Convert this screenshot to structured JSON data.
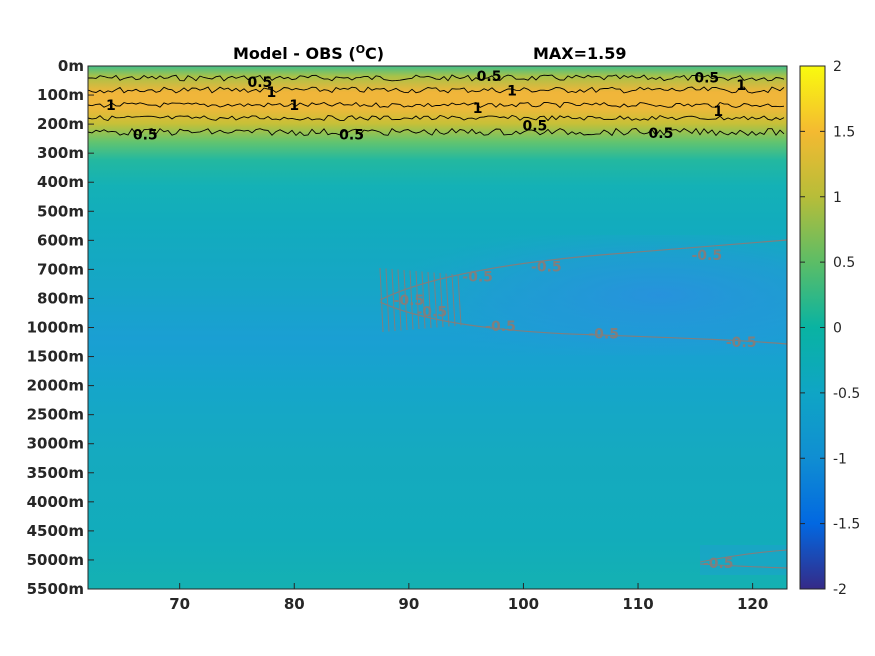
{
  "chart_data": {
    "type": "heatmap",
    "title": "Model - OBS (",
    "title_unit": "O",
    "title_unit_tail": "C)",
    "annotation": "MAX=1.59",
    "x_ticks": [
      "70",
      "80",
      "90",
      "100",
      "110",
      "120"
    ],
    "x_tick_values": [
      70,
      80,
      90,
      100,
      110,
      120
    ],
    "xlim": [
      62,
      123
    ],
    "y_ticks": [
      "0m",
      "100m",
      "200m",
      "300m",
      "400m",
      "500m",
      "600m",
      "700m",
      "800m",
      "1000m",
      "1500m",
      "2000m",
      "2500m",
      "3000m",
      "3500m",
      "4000m",
      "4500m",
      "5000m",
      "5500m"
    ],
    "colorbar": {
      "ticks": [
        "2",
        "1.5",
        "1",
        "0.5",
        "0",
        "-0.5",
        "-1",
        "-1.5",
        "-2"
      ],
      "range": [
        -2,
        2
      ],
      "colormap": "parula"
    },
    "contours": [
      {
        "level": "0.5",
        "color": "#000000",
        "labels": [
          {
            "text": "0.5",
            "x": 77,
            "y": 0.55
          },
          {
            "text": "0.5",
            "x": 97,
            "y": 0.35
          },
          {
            "text": "0.5",
            "x": 116,
            "y": 0.4
          },
          {
            "text": "0.5",
            "x": 67,
            "y": 2.35
          },
          {
            "text": "0.5",
            "x": 85,
            "y": 2.35
          },
          {
            "text": "0.5",
            "x": 101,
            "y": 2.05
          },
          {
            "text": "0.5",
            "x": 112,
            "y": 2.3
          }
        ]
      },
      {
        "level": "1",
        "color": "#000000",
        "labels": [
          {
            "text": "1",
            "x": 78,
            "y": 0.9
          },
          {
            "text": "1",
            "x": 99,
            "y": 0.85
          },
          {
            "text": "1",
            "x": 119,
            "y": 0.65
          },
          {
            "text": "1",
            "x": 64,
            "y": 1.35
          },
          {
            "text": "1",
            "x": 80,
            "y": 1.35
          },
          {
            "text": "1",
            "x": 96,
            "y": 1.45
          },
          {
            "text": "1",
            "x": 117,
            "y": 1.55
          }
        ]
      },
      {
        "level": "-0.5",
        "color": "#7f7f7f",
        "labels": [
          {
            "text": "-0.5",
            "x": 96,
            "y": 7.25
          },
          {
            "text": "-0.5",
            "x": 102,
            "y": 6.9
          },
          {
            "text": "-0.5",
            "x": 116,
            "y": 6.5
          },
          {
            "text": "-0.5",
            "x": 90,
            "y": 8.05
          },
          {
            "text": "-0.5",
            "x": 92,
            "y": 8.45
          },
          {
            "text": "-0.5",
            "x": 98,
            "y": 8.95
          },
          {
            "text": "-0.5",
            "x": 107,
            "y": 9.2
          },
          {
            "text": "-0.5",
            "x": 119,
            "y": 9.5
          },
          {
            "text": "-0.5",
            "x": 117,
            "y": 17.1
          }
        ]
      }
    ]
  }
}
